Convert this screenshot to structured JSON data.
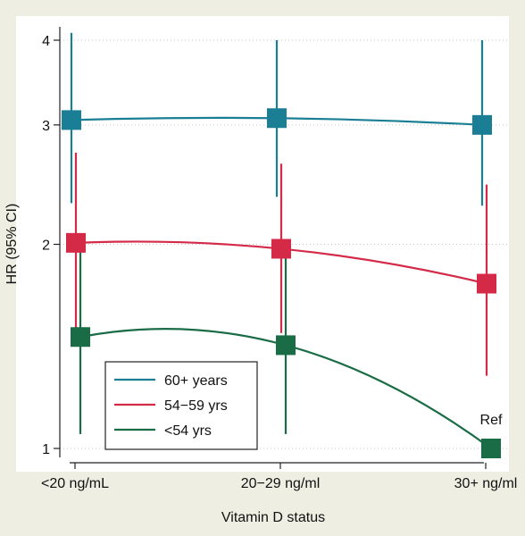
{
  "chart_data": {
    "type": "scatter",
    "title": "",
    "xlabel": "Vitamin D status",
    "ylabel": "HR (95% CI)",
    "categories": [
      "<20 ng/mL",
      "20−29 ng/ml",
      "30+ ng/ml"
    ],
    "ylim": [
      0.95,
      4.3
    ],
    "y_scale": "log",
    "yticks": [
      1,
      2,
      3,
      4
    ],
    "ytick_labels": [
      "1",
      "2",
      "3",
      "4"
    ],
    "grid": true,
    "legend_position": "bottom-left",
    "series": [
      {
        "name": "60+ years",
        "color": "#1a7f94",
        "x": [
          0,
          1,
          2
        ],
        "values": [
          3.05,
          3.07,
          3.0
        ],
        "ci_low": [
          2.3,
          2.35,
          2.28
        ],
        "ci_high": [
          4.1,
          4.0,
          4.0
        ]
      },
      {
        "name": "54−59 yrs",
        "color": "#d42a48",
        "x": [
          0,
          1,
          2
        ],
        "values": [
          2.01,
          1.97,
          1.75
        ],
        "ci_low": [
          1.45,
          1.48,
          1.28
        ],
        "ci_high": [
          2.73,
          2.63,
          2.45
        ]
      },
      {
        "name": "<54 yrs",
        "color": "#196c45",
        "x": [
          0,
          1,
          2
        ],
        "values": [
          1.46,
          1.42,
          1.0
        ],
        "ci_low": [
          1.05,
          1.05,
          1.0
        ],
        "ci_high": [
          1.98,
          1.93,
          1.0
        ]
      }
    ],
    "annotations": [
      {
        "text": "Ref",
        "series": 2,
        "point": 2
      }
    ]
  }
}
